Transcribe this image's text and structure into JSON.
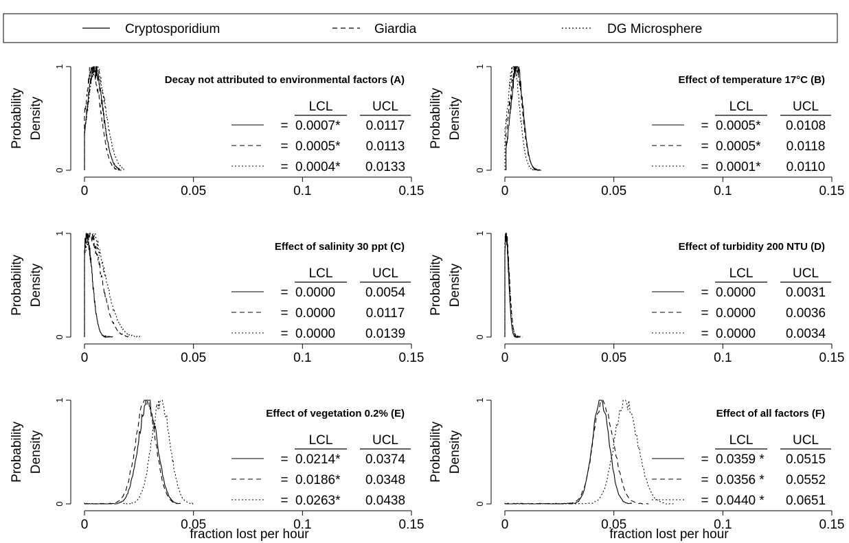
{
  "legend": {
    "entries": [
      {
        "name": "Cryptosporidium",
        "dash": "solid"
      },
      {
        "name": "Giardia",
        "dash": "dashed"
      },
      {
        "name": "DG Microsphere",
        "dash": "dotted"
      }
    ]
  },
  "shared": {
    "ylabel_line1": "Probability",
    "ylabel_line2": "Density",
    "xlabel": "fraction lost per hour",
    "y_ticks": [
      "0",
      "1"
    ],
    "x_ticks": [
      "0",
      "0.05",
      "0.1",
      "0.15"
    ],
    "x_tick_values": [
      0,
      0.05,
      0.1,
      0.15
    ],
    "col_lcl": "LCL",
    "col_ucl": "UCL",
    "eq": "="
  },
  "chart_data": [
    {
      "type": "line",
      "title": "Decay not attributed to environmental factors (A)",
      "xlim": [
        0,
        0.15
      ],
      "ylim": [
        0,
        1
      ],
      "series": [
        {
          "name": "Cryptosporidium",
          "dash": "solid",
          "mode": 0.0045,
          "sd": 0.0032,
          "skew": 1.2,
          "min": 0.0,
          "max": 0.016
        },
        {
          "name": "Giardia",
          "dash": "dashed",
          "mode": 0.0035,
          "sd": 0.0031,
          "skew": 1.2,
          "min": 0.0,
          "max": 0.017
        },
        {
          "name": "DG Microsphere",
          "dash": "dotted",
          "mode": 0.005,
          "sd": 0.0035,
          "skew": 1.3,
          "min": 0.0,
          "max": 0.018
        }
      ],
      "rows": [
        {
          "lcl": "0.0007*",
          "ucl": "0.0117"
        },
        {
          "lcl": "0.0005*",
          "ucl": "0.0113"
        },
        {
          "lcl": "0.0004*",
          "ucl": "0.0133"
        }
      ]
    },
    {
      "type": "line",
      "title": "Effect of temperature 17°C (B)",
      "xlim": [
        0,
        0.15
      ],
      "ylim": [
        0,
        1
      ],
      "series": [
        {
          "name": "Cryptosporidium",
          "dash": "solid",
          "mode": 0.0055,
          "sd": 0.0028,
          "skew": 1.0,
          "min": 0.0005,
          "max": 0.016
        },
        {
          "name": "Giardia",
          "dash": "dashed",
          "mode": 0.005,
          "sd": 0.003,
          "skew": 1.0,
          "min": 0.0005,
          "max": 0.017
        },
        {
          "name": "DG Microsphere",
          "dash": "dotted",
          "mode": 0.004,
          "sd": 0.0028,
          "skew": 1.0,
          "min": 0.0,
          "max": 0.015
        }
      ],
      "rows": [
        {
          "lcl": "0.0005*",
          "ucl": "0.0108"
        },
        {
          "lcl": "0.0005*",
          "ucl": "0.0118"
        },
        {
          "lcl": "0.0001*",
          "ucl": "0.0110"
        }
      ]
    },
    {
      "type": "line",
      "title": "Effect of  salinity 30 ppt (C)",
      "xlim": [
        0,
        0.15
      ],
      "ylim": [
        0,
        1
      ],
      "series": [
        {
          "name": "Cryptosporidium",
          "dash": "solid",
          "mode": 0.0008,
          "sd": 0.0012,
          "skew": 2.2,
          "min": 0.0,
          "max": 0.013
        },
        {
          "name": "Giardia",
          "dash": "dashed",
          "mode": 0.002,
          "sd": 0.0035,
          "skew": 1.6,
          "min": 0.0,
          "max": 0.02
        },
        {
          "name": "DG Microsphere",
          "dash": "dotted",
          "mode": 0.003,
          "sd": 0.004,
          "skew": 1.6,
          "min": 0.0,
          "max": 0.026
        }
      ],
      "rows": [
        {
          "lcl": "0.0000",
          "ucl": "0.0054"
        },
        {
          "lcl": "0.0000",
          "ucl": "0.0117"
        },
        {
          "lcl": "0.0000",
          "ucl": "0.0139"
        }
      ]
    },
    {
      "type": "line",
      "title": "Effect of turbidity 200 NTU (D)",
      "xlim": [
        0,
        0.15
      ],
      "ylim": [
        0,
        1
      ],
      "series": [
        {
          "name": "Cryptosporidium",
          "dash": "solid",
          "mode": 0.0004,
          "sd": 0.0006,
          "skew": 2.2,
          "min": 0.0,
          "max": 0.007
        },
        {
          "name": "Giardia",
          "dash": "dashed",
          "mode": 0.0005,
          "sd": 0.0007,
          "skew": 2.2,
          "min": 0.0,
          "max": 0.008
        },
        {
          "name": "DG Microsphere",
          "dash": "dotted",
          "mode": 0.0004,
          "sd": 0.0007,
          "skew": 2.2,
          "min": 0.0,
          "max": 0.007
        }
      ],
      "rows": [
        {
          "lcl": "0.0000",
          "ucl": "0.0031"
        },
        {
          "lcl": "0.0000",
          "ucl": "0.0036"
        },
        {
          "lcl": "0.0000",
          "ucl": "0.0034"
        }
      ]
    },
    {
      "type": "line",
      "title": "Effect of vegetation 0.2% (E)",
      "xlim": [
        0,
        0.15
      ],
      "ylim": [
        0,
        1
      ],
      "series": [
        {
          "name": "Cryptosporidium",
          "dash": "solid",
          "mode": 0.029,
          "sd": 0.0043,
          "skew": 1.0,
          "min": 0.0,
          "max": 0.042
        },
        {
          "name": "Giardia",
          "dash": "dashed",
          "mode": 0.028,
          "sd": 0.0045,
          "skew": 1.0,
          "min": 0.0,
          "max": 0.045
        },
        {
          "name": "DG Microsphere",
          "dash": "dotted",
          "mode": 0.035,
          "sd": 0.0042,
          "skew": 1.0,
          "min": 0.018,
          "max": 0.05
        }
      ],
      "rows": [
        {
          "lcl": "0.0214*",
          "ucl": "0.0374"
        },
        {
          "lcl": "0.0186*",
          "ucl": "0.0348"
        },
        {
          "lcl": "0.0263*",
          "ucl": "0.0438"
        }
      ]
    },
    {
      "type": "line",
      "title": "Effect of all factors (F)",
      "xlim": [
        0,
        0.15
      ],
      "ylim": [
        0,
        1
      ],
      "series": [
        {
          "name": "Cryptosporidium",
          "dash": "solid",
          "mode": 0.044,
          "sd": 0.0038,
          "skew": 1.0,
          "min": 0.0,
          "max": 0.058
        },
        {
          "name": "Giardia",
          "dash": "dashed",
          "mode": 0.045,
          "sd": 0.0045,
          "skew": 1.1,
          "min": 0.0,
          "max": 0.066
        },
        {
          "name": "DG Microsphere",
          "dash": "dotted",
          "mode": 0.055,
          "sd": 0.0048,
          "skew": 1.2,
          "min": 0.02,
          "max": 0.078
        }
      ],
      "rows": [
        {
          "lcl": "0.0359 *",
          "ucl": "0.0515"
        },
        {
          "lcl": "0.0356 *",
          "ucl": "0.0552"
        },
        {
          "lcl": "0.0440 *",
          "ucl": "0.0651"
        }
      ]
    }
  ]
}
